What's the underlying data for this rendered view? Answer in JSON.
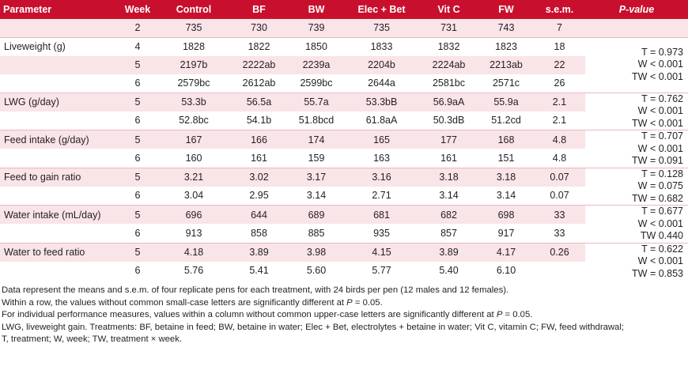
{
  "headers": [
    "Parameter",
    "Week",
    "Control",
    "BF",
    "BW",
    "Elec + Bet",
    "Vit C",
    "FW",
    "s.e.m.",
    "P-value"
  ],
  "groups": [
    {
      "name": "",
      "rows": [
        {
          "week": "2",
          "values": [
            "735",
            "730",
            "739",
            "735",
            "731",
            "743"
          ],
          "sem": "7"
        }
      ],
      "pvalues": []
    },
    {
      "name": "Liveweight (g)",
      "rows": [
        {
          "week": "4",
          "values": [
            "1828",
            "1822",
            "1850",
            "1833",
            "1832",
            "1823"
          ],
          "sem": "18"
        },
        {
          "week": "5",
          "values": [
            "2197b",
            "2222ab",
            "2239a",
            "2204b",
            "2224ab",
            "2213ab"
          ],
          "sem": "22"
        },
        {
          "week": "6",
          "values": [
            "2579bc",
            "2612ab",
            "2599bc",
            "2644a",
            "2581bc",
            "2571c"
          ],
          "sem": "26"
        }
      ],
      "pvalues": [
        "T = 0.973",
        "W < 0.001",
        "TW < 0.001"
      ]
    },
    {
      "name": "LWG (g/day)",
      "rows": [
        {
          "week": "5",
          "values": [
            "53.3b",
            "56.5a",
            "55.7a",
            "53.3bB",
            "56.9aA",
            "55.9a"
          ],
          "sem": "2.1"
        },
        {
          "week": "6",
          "values": [
            "52.8bc",
            "54.1b",
            "51.8bcd",
            "61.8aA",
            "50.3dB",
            "51.2cd"
          ],
          "sem": "2.1"
        }
      ],
      "pvalues": [
        "T = 0.762",
        "W < 0.001",
        "TW < 0.001"
      ]
    },
    {
      "name": "Feed intake (g/day)",
      "rows": [
        {
          "week": "5",
          "values": [
            "167",
            "166",
            "174",
            "165",
            "177",
            "168"
          ],
          "sem": "4.8"
        },
        {
          "week": "6",
          "values": [
            "160",
            "161",
            "159",
            "163",
            "161",
            "151"
          ],
          "sem": "4.8"
        }
      ],
      "pvalues": [
        "T = 0.707",
        "W < 0.001",
        "TW = 0.091"
      ]
    },
    {
      "name": "Feed to gain ratio",
      "rows": [
        {
          "week": "5",
          "values": [
            "3.21",
            "3.02",
            "3.17",
            "3.16",
            "3.18",
            "3.18"
          ],
          "sem": "0.07"
        },
        {
          "week": "6",
          "values": [
            "3.04",
            "2.95",
            "3.14",
            "2.71",
            "3.14",
            "3.14"
          ],
          "sem": "0.07"
        }
      ],
      "pvalues": [
        "T = 0.128",
        "W = 0.075",
        "TW = 0.682"
      ]
    },
    {
      "name": "Water intake (mL/day)",
      "rows": [
        {
          "week": "5",
          "values": [
            "696",
            "644",
            "689",
            "681",
            "682",
            "698"
          ],
          "sem": "33"
        },
        {
          "week": "6",
          "values": [
            "913",
            "858",
            "885",
            "935",
            "857",
            "917"
          ],
          "sem": "33"
        }
      ],
      "pvalues": [
        "T = 0.677",
        "W < 0.001",
        "TW 0.440"
      ]
    },
    {
      "name": "Water to feed ratio",
      "rows": [
        {
          "week": "5",
          "values": [
            "4.18",
            "3.89",
            "3.98",
            "4.15",
            "3.89",
            "4.17"
          ],
          "sem": "0.26"
        },
        {
          "week": "6",
          "values": [
            "5.76",
            "5.41",
            "5.60",
            "5.77",
            "5.40",
            "6.10"
          ],
          "sem": ""
        }
      ],
      "pvalues": [
        "T = 0.622",
        "W < 0.001",
        "TW = 0.853"
      ]
    }
  ],
  "notes": {
    "n1": "Data represent the means and s.e.m. of four replicate pens for each treatment, with 24 birds per pen (12 males and 12 females).",
    "n2_pre": "Within a row, the values without common small-case letters are significantly different at ",
    "n2_p": "P",
    "n2_post": " = 0.05.",
    "n3_pre": "For individual performance measures, values within a column without common upper-case letters are significantly different at ",
    "n3_p": "P",
    "n3_post": " = 0.05.",
    "n4": "LWG, liveweight gain. Treatments: BF, betaine in feed; BW, betaine in water; Elec + Bet, electrolytes + betaine in water; Vit C, vitamin C; FW, feed withdrawal;",
    "n5": "T, treatment; W, week; TW, treatment × week."
  }
}
